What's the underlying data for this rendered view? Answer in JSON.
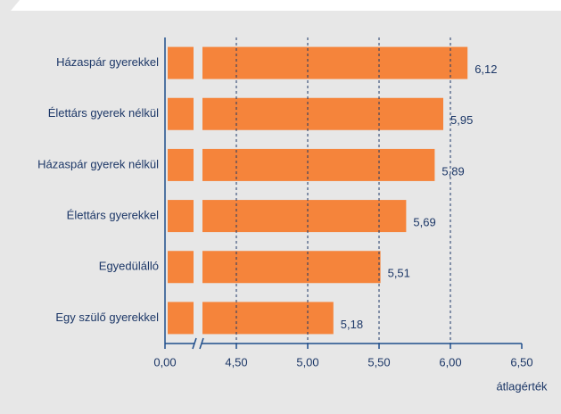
{
  "chart_data": {
    "type": "bar",
    "orientation": "horizontal",
    "categories": [
      "Házaspár gyerekkel",
      "Élettárs gyerek nélkül",
      "Házaspár gyerek nélkül",
      "Élettárs gyerekkel",
      "Egyedülálló",
      "Egy szülő gyerekkel"
    ],
    "values": [
      6.12,
      5.95,
      5.89,
      5.69,
      5.51,
      5.18
    ],
    "value_labels": [
      "6,12",
      "5,95",
      "5,89",
      "5,69",
      "5,51",
      "5,18"
    ],
    "color": "#f5843b",
    "xlim": [
      0,
      6.5
    ],
    "xticks": [
      {
        "value": 0,
        "label": "0,00"
      },
      {
        "value": 4.5,
        "label": "4,50"
      },
      {
        "value": 5,
        "label": "5,00"
      },
      {
        "value": 5.5,
        "label": "5,50"
      },
      {
        "value": 6,
        "label": "6,00"
      },
      {
        "value": 6.5,
        "label": "6,50"
      }
    ],
    "xlabel": "átlagérték",
    "axis_break": true,
    "grid": true
  }
}
